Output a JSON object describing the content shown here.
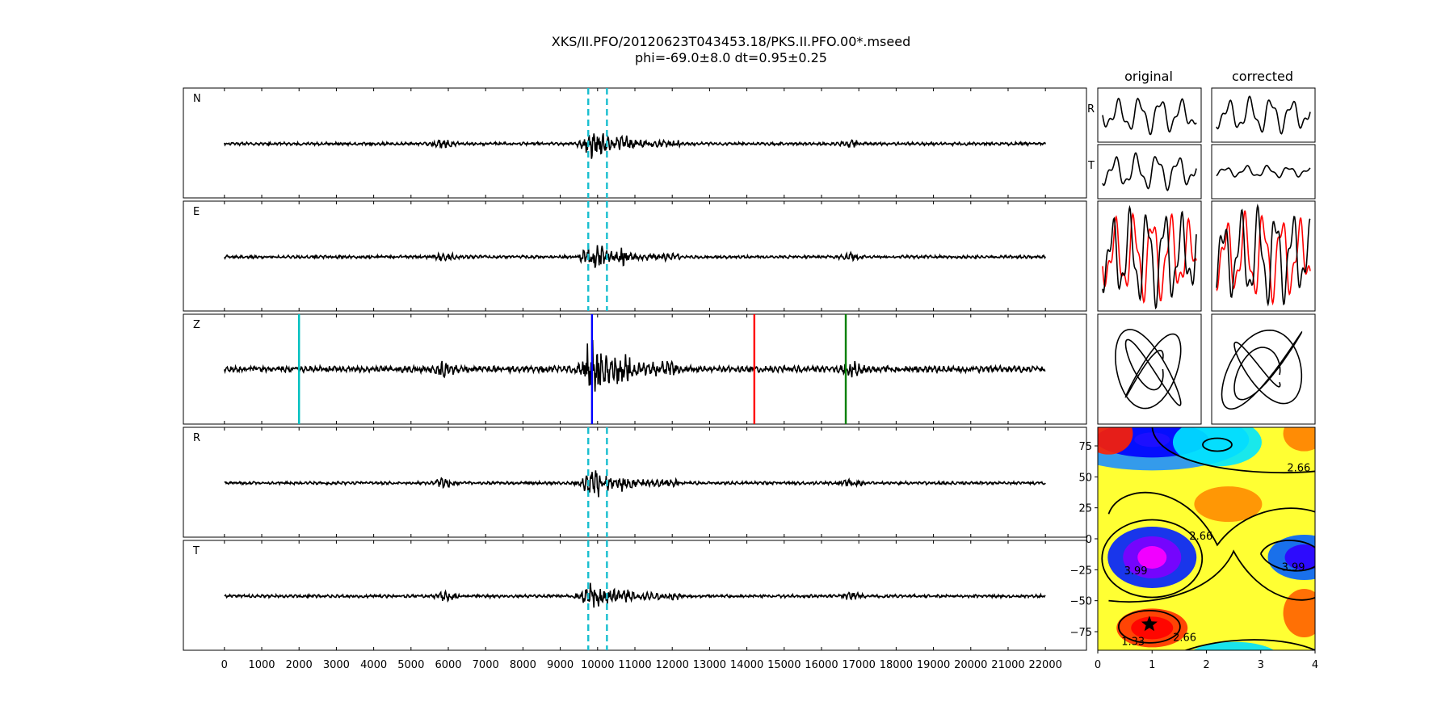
{
  "figure": {
    "title_line1": "XKS/II.PFO/20120623T043453.18/PKS.II.PFO.00*.mseed",
    "title_line2": "phi=-69.0±8.0 dt=0.95±0.25"
  },
  "chart_data": [
    {
      "type": "line",
      "name": "traces",
      "panels": [
        "N",
        "E",
        "Z",
        "R",
        "T"
      ],
      "x_ticks": [
        0,
        1000,
        2000,
        3000,
        4000,
        5000,
        6000,
        7000,
        8000,
        9000,
        10000,
        11000,
        12000,
        13000,
        14000,
        15000,
        16000,
        17000,
        18000,
        19000,
        20000,
        21000,
        22000
      ],
      "x_tick_labels": [
        "0",
        "1000",
        "2000",
        "3000",
        "4000",
        "5000",
        "6000",
        "7000",
        "8000",
        "9000",
        "10000",
        "11000",
        "12000",
        "13000",
        "14000",
        "15000",
        "16000",
        "17000",
        "18000",
        "19000",
        "20000",
        "21000",
        "22000"
      ],
      "xlim": [
        -1100,
        23100
      ],
      "data_range": [
        0,
        22000
      ],
      "window_lines": {
        "values": [
          9750,
          10250
        ],
        "color": "#17becf",
        "style": "dashed",
        "panels": [
          "N",
          "E",
          "R",
          "T"
        ]
      },
      "phase_lines": [
        {
          "x": 2000,
          "color": "#00bfbf"
        },
        {
          "x": 9850,
          "color": "#0000ff"
        },
        {
          "x": 14200,
          "color": "#ff0000"
        },
        {
          "x": 16650,
          "color": "#008000"
        }
      ],
      "energy_bursts": [
        {
          "x": 5900,
          "amp": 0.45
        },
        {
          "x": 9800,
          "amp": 1.0
        },
        {
          "x": 10050,
          "amp": 0.8
        },
        {
          "x": 10650,
          "amp": 0.7
        },
        {
          "x": 16800,
          "amp": 0.35
        }
      ],
      "trace_color": "#000000"
    },
    {
      "type": "line",
      "name": "particle-panels",
      "column_titles": [
        "original",
        "corrected"
      ],
      "row_labels": [
        "R",
        "T"
      ],
      "overlay_colors": [
        "#ff0000",
        "#000000"
      ]
    },
    {
      "type": "heatmap",
      "name": "error-surface",
      "xlim": [
        0,
        4
      ],
      "ylim": [
        -90,
        90
      ],
      "x_ticks": [
        0,
        1,
        2,
        3,
        4
      ],
      "y_ticks": [
        75,
        50,
        25,
        0,
        -25,
        -50,
        -75
      ],
      "y_tick_labels": [
        "75",
        "50",
        "25",
        "0",
        "−25",
        "−50",
        "−75"
      ],
      "contour_labels": [
        "2.66",
        "2.66",
        "3.99",
        "3.99",
        "1.33",
        "2.66"
      ],
      "best_fit": {
        "dt": 0.95,
        "phi": -69.0
      },
      "colormap": "gist_rainbow"
    }
  ]
}
